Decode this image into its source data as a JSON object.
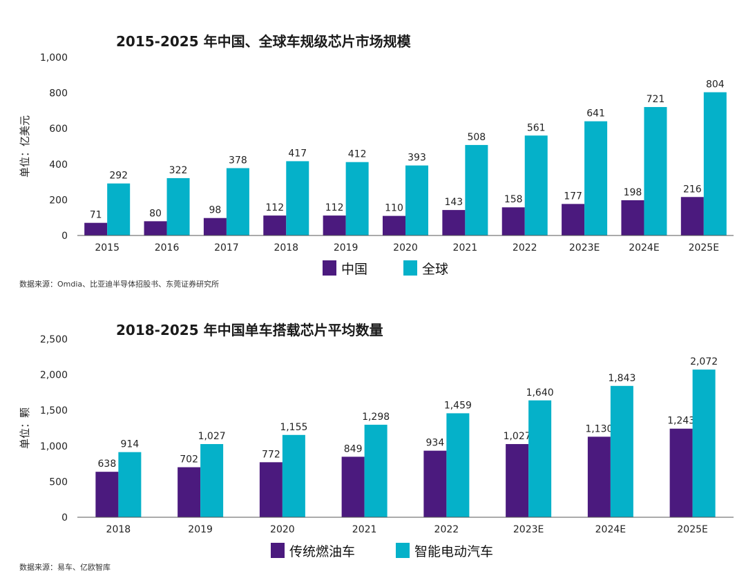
{
  "chart_data": [
    {
      "type": "bar",
      "title": "2015-2025 年中国、全球车规级芯片市场规模",
      "ylabel": "单位：亿美元",
      "xlabel": "",
      "categories": [
        "2015",
        "2016",
        "2017",
        "2018",
        "2019",
        "2020",
        "2021",
        "2022",
        "2023E",
        "2024E",
        "2025E"
      ],
      "series": [
        {
          "name": "中国",
          "color": "#4b1a7e",
          "values": [
            71,
            80,
            98,
            112,
            112,
            110,
            143,
            158,
            177,
            198,
            216
          ]
        },
        {
          "name": "全球",
          "color": "#05b1c9",
          "values": [
            292,
            322,
            378,
            417,
            412,
            393,
            508,
            561,
            641,
            721,
            804
          ]
        }
      ],
      "ylim": [
        0,
        1000
      ],
      "yticks": [
        0,
        200,
        400,
        600,
        800,
        1000
      ],
      "ytick_labels": [
        "0",
        "200",
        "400",
        "600",
        "800",
        "1,000"
      ],
      "grid": false,
      "legend_position": "bottom",
      "source": "数据来源：Omdia、比亚迪半导体招股书、东莞证券研究所"
    },
    {
      "type": "bar",
      "title": "2018-2025 年中国单车搭载芯片平均数量",
      "ylabel": "单位：颗",
      "xlabel": "",
      "categories": [
        "2018",
        "2019",
        "2020",
        "2021",
        "2022",
        "2023E",
        "2024E",
        "2025E"
      ],
      "series": [
        {
          "name": "传统燃油车",
          "color": "#4b1a7e",
          "values": [
            638,
            702,
            772,
            849,
            934,
            1027,
            1130,
            1243
          ]
        },
        {
          "name": "智能电动汽车",
          "color": "#05b1c9",
          "values": [
            914,
            1027,
            1155,
            1298,
            1459,
            1640,
            1843,
            2072
          ]
        }
      ],
      "ylim": [
        0,
        2500
      ],
      "yticks": [
        0,
        500,
        1000,
        1500,
        2000,
        2500
      ],
      "ytick_labels": [
        "0",
        "500",
        "1,000",
        "1,500",
        "2,000",
        "2,500"
      ],
      "grid": false,
      "legend_position": "bottom",
      "source": "数据来源：易车、亿欧智库"
    }
  ]
}
